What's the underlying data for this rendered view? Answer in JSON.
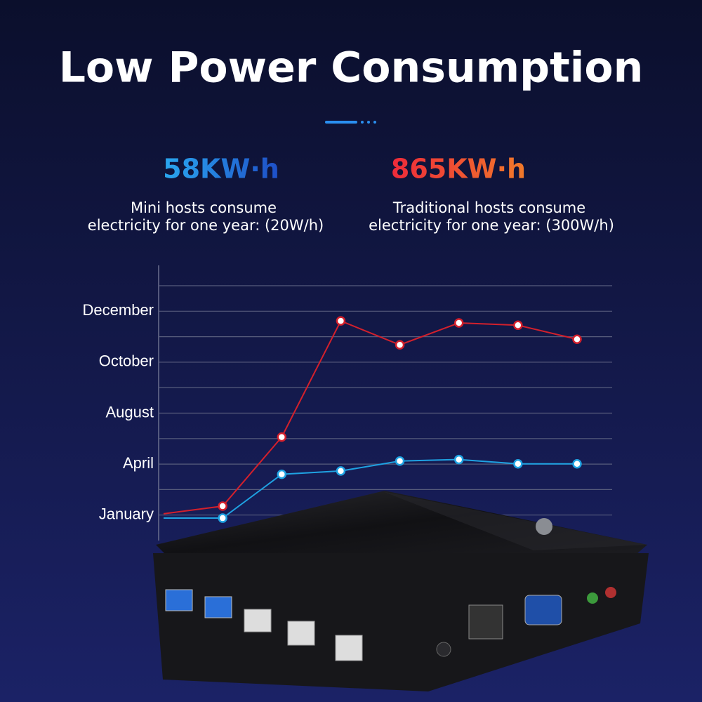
{
  "title": "Low Power Consumption",
  "stats": [
    {
      "value_text": "58KW·h",
      "description": [
        "Mini hosts consume",
        "electricity for one year: (20W/h)"
      ]
    },
    {
      "value_text": "865KW·h",
      "description": [
        "Traditional hosts consume",
        "electricity for one year: (300W/h)"
      ]
    }
  ],
  "chart_data": {
    "type": "line",
    "x": [
      0,
      1,
      2,
      3,
      4,
      5,
      6,
      7
    ],
    "xlim": [
      0,
      7
    ],
    "ylim": [
      0,
      10.8
    ],
    "yticks": [
      {
        "value": 1,
        "label": "January"
      },
      {
        "value": 3,
        "label": "April"
      },
      {
        "value": 5,
        "label": "August"
      },
      {
        "value": 7,
        "label": "October"
      },
      {
        "value": 9,
        "label": "December"
      }
    ],
    "minor_yticks": [
      2,
      4,
      6,
      8,
      10
    ],
    "grid": true,
    "series": [
      {
        "color": "#d3202c",
        "values": [
          1.05,
          1.35,
          4.06,
          8.62,
          7.68,
          8.54,
          8.45,
          7.9
        ]
      },
      {
        "color": "#1fa2e2",
        "values": [
          0.88,
          0.88,
          2.6,
          2.73,
          3.12,
          3.18,
          3.01,
          3.01
        ]
      }
    ]
  }
}
